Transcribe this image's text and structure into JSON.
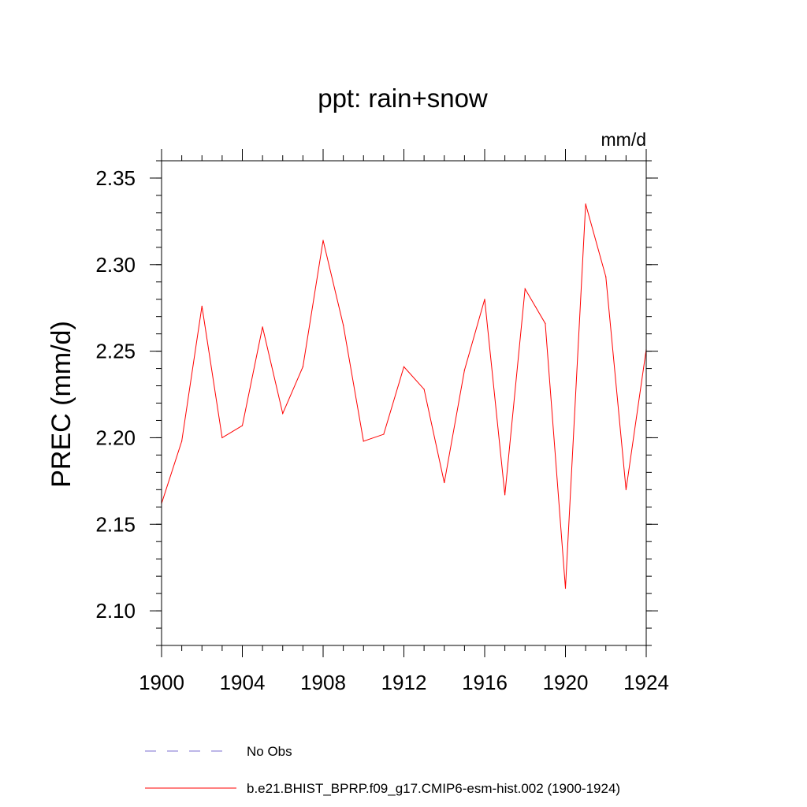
{
  "chart_data": {
    "type": "line",
    "title": "ppt: rain+snow",
    "units": "mm/d",
    "xlabel": "",
    "ylabel": "PREC  (mm/d)",
    "xlim": [
      1900,
      1924
    ],
    "ylim": [
      2.08,
      2.36
    ],
    "x_major_ticks": [
      1900,
      1904,
      1908,
      1912,
      1916,
      1920,
      1924
    ],
    "x_minor_step": 1,
    "y_major_ticks": [
      2.1,
      2.15,
      2.2,
      2.25,
      2.3,
      2.35
    ],
    "y_minor_step": 0.01,
    "x": [
      1900,
      1901,
      1902,
      1903,
      1904,
      1905,
      1906,
      1907,
      1908,
      1909,
      1910,
      1911,
      1912,
      1913,
      1914,
      1915,
      1916,
      1917,
      1918,
      1919,
      1920,
      1921,
      1922,
      1923,
      1924
    ],
    "series": [
      {
        "name": "b.e21.BHIST_BPRP.f09_g17.CMIP6-esm-hist.002 (1900-1924)",
        "color": "#ff0000",
        "style": "solid",
        "values": [
          2.162,
          2.198,
          2.276,
          2.2,
          2.207,
          2.264,
          2.214,
          2.241,
          2.314,
          2.265,
          2.198,
          2.202,
          2.241,
          2.228,
          2.174,
          2.239,
          2.28,
          2.167,
          2.286,
          2.266,
          2.113,
          2.335,
          2.293,
          2.17,
          2.251
        ]
      }
    ],
    "legend": {
      "position": "bottom",
      "entries": [
        {
          "label": "No Obs",
          "color": "#7b6fd0",
          "style": "dashed"
        },
        {
          "label": "b.e21.BHIST_BPRP.f09_g17.CMIP6-esm-hist.002 (1900-1924)",
          "color": "#ff0000",
          "style": "solid"
        }
      ]
    }
  }
}
